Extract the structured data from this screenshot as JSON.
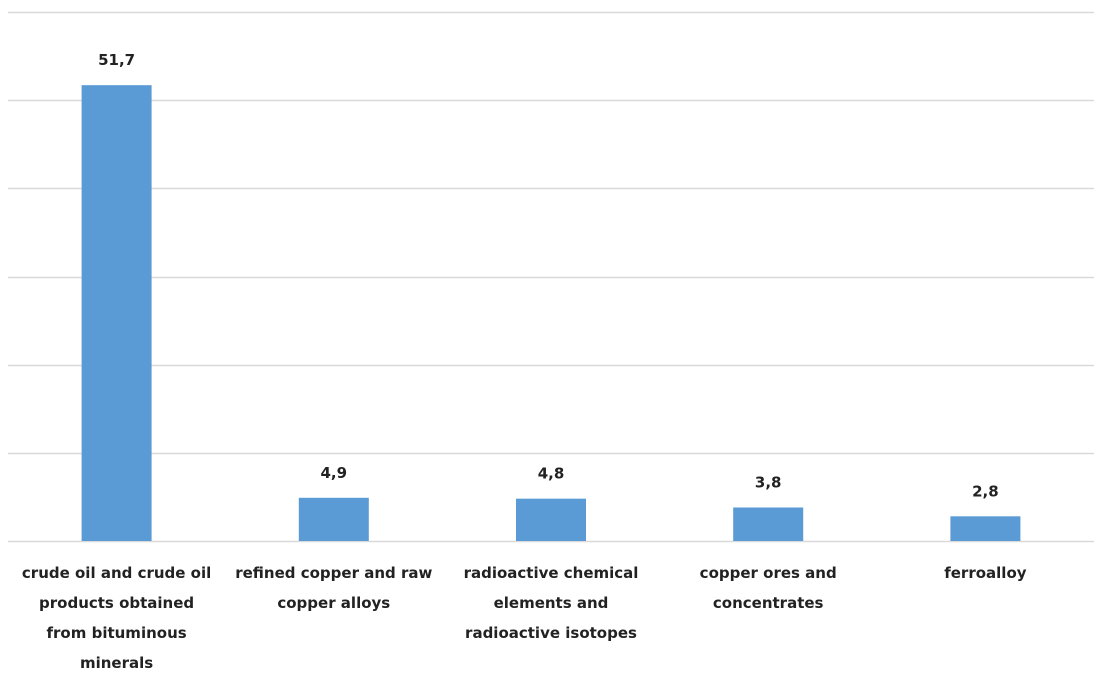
{
  "chart_data": {
    "type": "bar",
    "categories": [
      "crude oil and crude oil products obtained from bituminous minerals",
      "refined copper and raw copper alloys",
      "radioactive chemical elements and radioactive isotopes",
      "copper ores and concentrates",
      "ferroalloy"
    ],
    "values": [
      51.7,
      4.9,
      4.8,
      3.8,
      2.8
    ],
    "value_labels": [
      "51,7",
      "4,9",
      "4,8",
      "3,8",
      "2,8"
    ],
    "ylim": [
      0,
      60
    ],
    "grid": true,
    "bar_color": "#5b9bd5",
    "grid_color": "#d9d9d9"
  }
}
